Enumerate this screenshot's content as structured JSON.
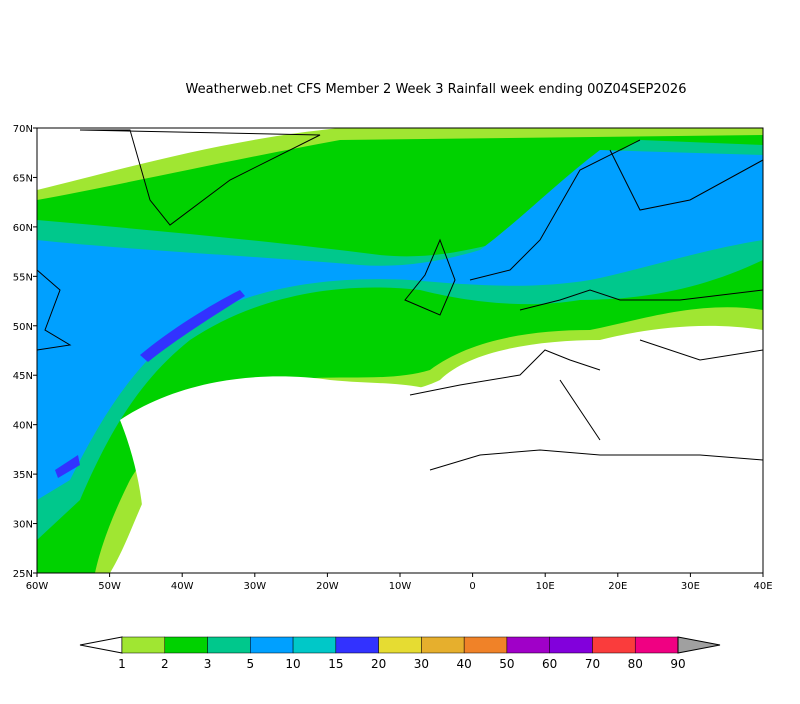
{
  "title": "Weatherweb.net CFS Member 2 Week 3 Rainfall week ending 00Z04SEP2026",
  "map": {
    "lon_labels": [
      "60W",
      "50W",
      "40W",
      "30W",
      "20W",
      "10W",
      "0",
      "10E",
      "20E",
      "30E",
      "40E"
    ],
    "lat_labels": [
      "25N",
      "30N",
      "35N",
      "40N",
      "45N",
      "50N",
      "55N",
      "60N",
      "65N",
      "70N"
    ]
  },
  "colorbar": {
    "labels": [
      "1",
      "2",
      "3",
      "5",
      "10",
      "15",
      "20",
      "30",
      "40",
      "50",
      "60",
      "70",
      "80",
      "90"
    ],
    "colors": [
      "#a0e632",
      "#00d200",
      "#00c88c",
      "#00a0ff",
      "#00c8c8",
      "#3232ff",
      "#e6dc32",
      "#e6af2d",
      "#f08228",
      "#a000c8",
      "#8200dc",
      "#fa3c3c",
      "#f00082"
    ],
    "under_color": "#ffffff",
    "over_color": "#a0a0a0"
  }
}
